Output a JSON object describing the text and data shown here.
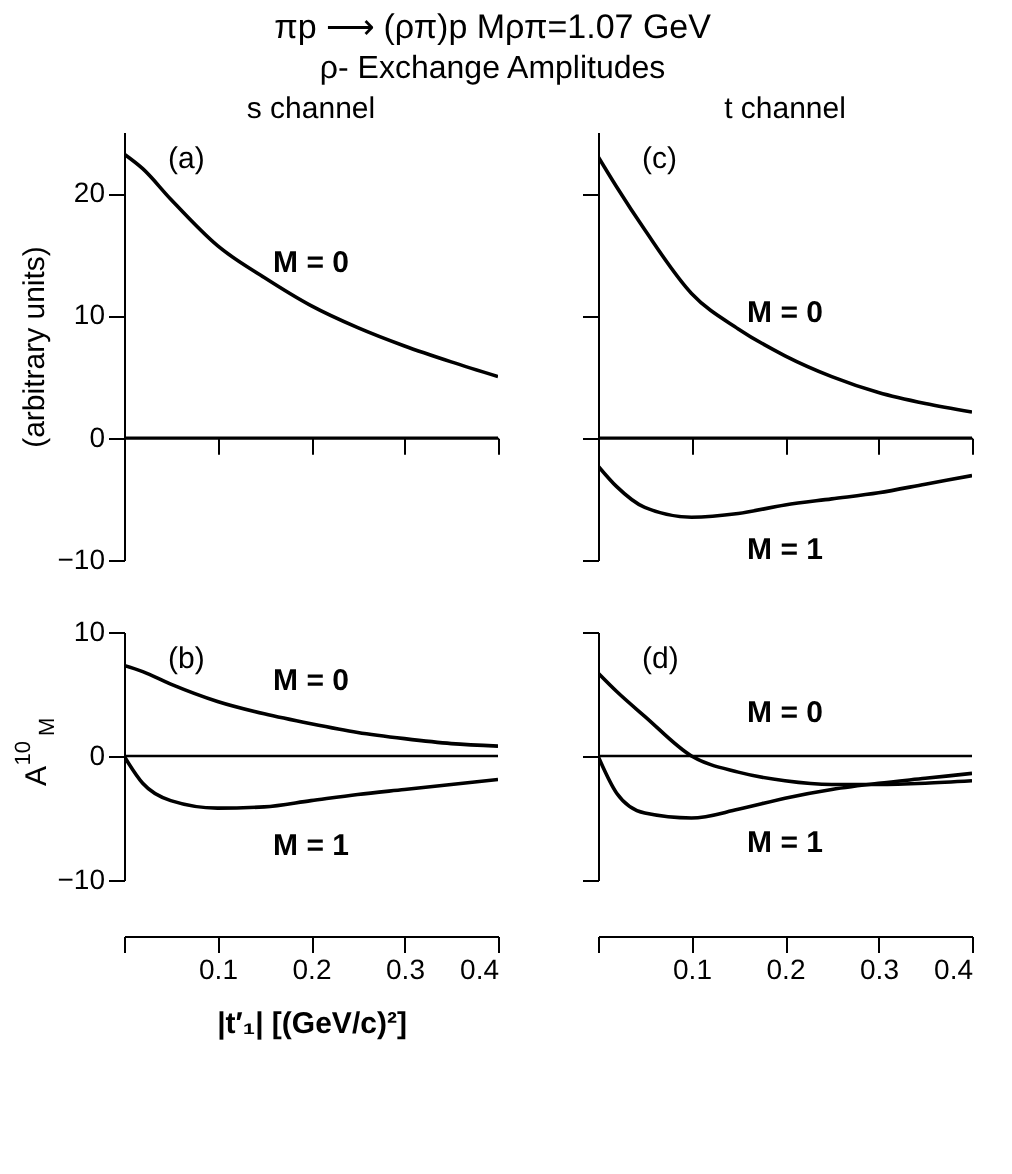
{
  "chart_data": [
    {
      "type": "other",
      "title": "πp ⟶ (ρπ)p   Mρπ=1.07 GeV",
      "subtitle": "ρ- Exchange Amplitudes"
    },
    {
      "type": "line",
      "title": "s channel",
      "ylabel": "(arbitrary units)",
      "x": [
        0,
        0.02,
        0.05,
        0.1,
        0.15,
        0.2,
        0.25,
        0.3,
        0.35,
        0.4
      ],
      "xlim": [
        0,
        0.4
      ],
      "xticks": [
        0.1,
        0.2,
        0.3,
        0.4
      ],
      "ylim": [
        -10,
        25
      ],
      "yticks": [
        -10,
        0,
        10,
        20
      ],
      "tick_labels": "y",
      "grid": false,
      "series": [
        {
          "name": "M = 0",
          "color": "#000000",
          "values": [
            23.2,
            22,
            19.5,
            15.7,
            13.1,
            10.8,
            9.0,
            7.5,
            6.2,
            5.0
          ]
        }
      ],
      "ref_lines": [
        {
          "axis": "y",
          "value": 0
        }
      ],
      "annotations": [
        "(a)"
      ]
    },
    {
      "type": "line",
      "title": "t channel",
      "x": [
        0,
        0.02,
        0.05,
        0.1,
        0.15,
        0.2,
        0.25,
        0.3,
        0.35,
        0.4
      ],
      "xlim": [
        0,
        0.4
      ],
      "xticks": [
        0.1,
        0.2,
        0.3,
        0.4
      ],
      "ylim": [
        -10,
        25
      ],
      "yticks": [
        -10,
        0,
        10,
        20
      ],
      "tick_labels": false,
      "grid": false,
      "series": [
        {
          "name": "M = 0",
          "color": "#000000",
          "values": [
            23,
            20.5,
            17,
            11.8,
            8.9,
            6.7,
            5.0,
            3.7,
            2.8,
            2.1
          ]
        },
        {
          "name": "M = 1",
          "color": "#000000",
          "values": [
            -2.3,
            -4.0,
            -5.7,
            -6.5,
            -6.2,
            -5.5,
            -5.0,
            -4.5,
            -3.8,
            -3.1
          ]
        }
      ],
      "ref_lines": [
        {
          "axis": "y",
          "value": 0
        }
      ],
      "annotations": [
        "(c)"
      ]
    },
    {
      "type": "line",
      "ylabel": "A$^{10}$$_{M}$",
      "xlabel": "|t′₁|  [(GeV/c)²]",
      "x": [
        0,
        0.02,
        0.05,
        0.1,
        0.15,
        0.2,
        0.25,
        0.3,
        0.35,
        0.4
      ],
      "xlim": [
        0,
        0.4
      ],
      "xticks": [
        {
          "value": 0,
          "label": null
        },
        0.1,
        0.2,
        0.3,
        0.4
      ],
      "ylim": [
        -10,
        10
      ],
      "yticks": [
        -10,
        0,
        10
      ],
      "grid": false,
      "series": [
        {
          "name": "M = 0",
          "color": "#000000",
          "values": [
            7.3,
            6.8,
            5.8,
            4.4,
            3.4,
            2.6,
            1.9,
            1.4,
            1.0,
            0.8
          ]
        },
        {
          "name": "M = 1",
          "color": "#000000",
          "values": [
            0,
            -2.2,
            -3.6,
            -4.2,
            -4.1,
            -3.6,
            -3.1,
            -2.7,
            -2.3,
            -1.9
          ]
        }
      ],
      "ref_lines": [
        {
          "axis": "y",
          "value": 0
        }
      ],
      "annotations": [
        "(b)"
      ]
    },
    {
      "type": "line",
      "x": [
        0,
        0.02,
        0.05,
        0.1,
        0.15,
        0.2,
        0.25,
        0.3,
        0.35,
        0.4
      ],
      "xlim": [
        0,
        0.4
      ],
      "xticks": [
        {
          "value": 0,
          "label": null
        },
        0.1,
        0.2,
        0.3,
        0.4
      ],
      "ylim": [
        -10,
        10
      ],
      "yticks": [
        -10,
        0,
        10
      ],
      "tick_labels": "x",
      "grid": false,
      "series": [
        {
          "name": "M = 0",
          "color": "#000000",
          "values": [
            6.7,
            5.2,
            3.2,
            0,
            -1.3,
            -2.0,
            -2.3,
            -2.3,
            -2.2,
            -2.0
          ]
        },
        {
          "name": "M = 1",
          "color": "#000000",
          "values": [
            0,
            -3.0,
            -4.6,
            -5.0,
            -4.3,
            -3.4,
            -2.7,
            -2.2,
            -1.8,
            -1.4
          ]
        }
      ],
      "ref_lines": [
        {
          "axis": "y",
          "value": 0
        }
      ],
      "annotations": [
        "(d)"
      ]
    }
  ]
}
